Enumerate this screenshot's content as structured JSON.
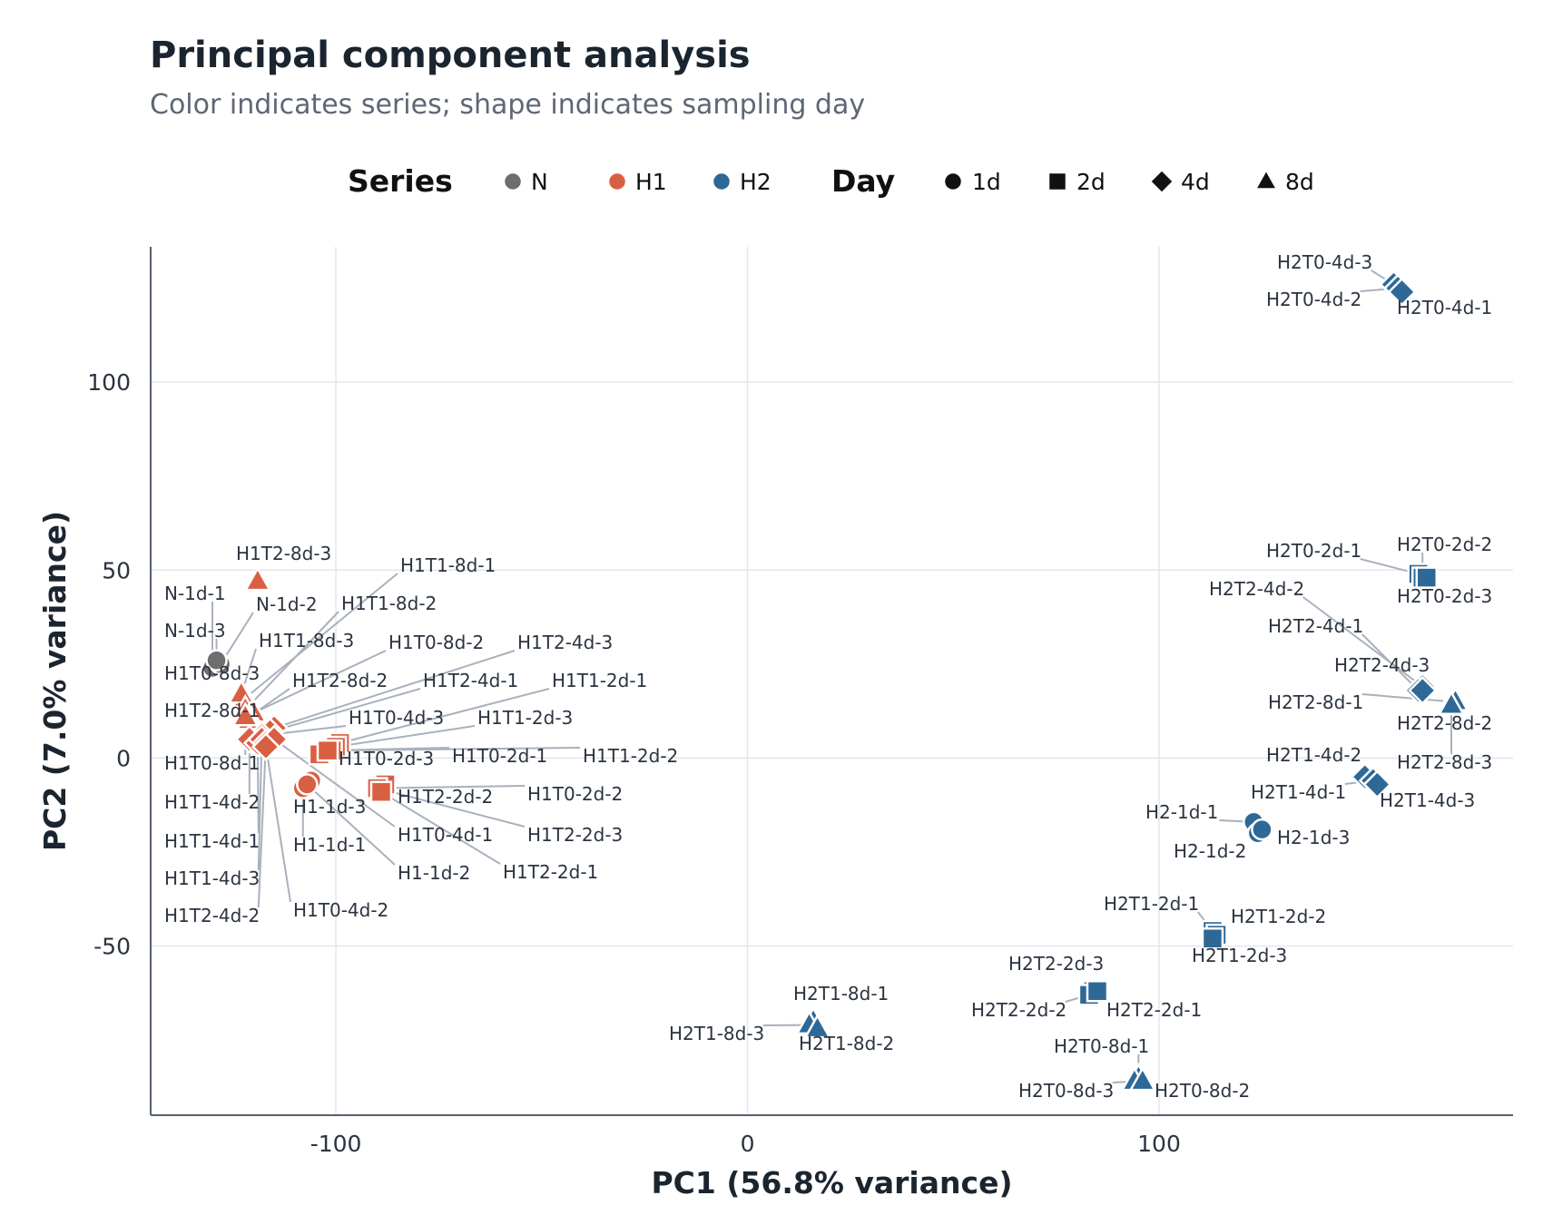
{
  "chart_data": {
    "type": "scatter",
    "title": "Principal component analysis",
    "subtitle": "Color indicates series; shape indicates sampling day",
    "xlabel": "PC1 (56.8% variance)",
    "ylabel": "PC2 (7.0% variance)",
    "xlim": [
      -145,
      186
    ],
    "ylim": [
      -95,
      136
    ],
    "xticks": [
      -100,
      0,
      100
    ],
    "yticks": [
      -50,
      0,
      50,
      100
    ],
    "grid": true,
    "legend": {
      "position": "top",
      "series_title": "Series",
      "series": [
        {
          "name": "N",
          "color": "#6e6e6e"
        },
        {
          "name": "H1",
          "color": "#d95f43"
        },
        {
          "name": "H2",
          "color": "#2e6896"
        }
      ],
      "day_title": "Day",
      "days": [
        {
          "name": "1d",
          "shape": "circle"
        },
        {
          "name": "2d",
          "shape": "square"
        },
        {
          "name": "4d",
          "shape": "diamond"
        },
        {
          "name": "8d",
          "shape": "triangle"
        }
      ]
    },
    "points": [
      {
        "label": "N-1d-1",
        "series": "N",
        "day": "1d",
        "x": -130,
        "y": 24
      },
      {
        "label": "N-1d-2",
        "series": "N",
        "day": "1d",
        "x": -128,
        "y": 25
      },
      {
        "label": "N-1d-3",
        "series": "N",
        "day": "1d",
        "x": -129,
        "y": 26
      },
      {
        "label": "H1T2-8d-3",
        "series": "H1",
        "day": "8d",
        "x": -119,
        "y": 47
      },
      {
        "label": "H1T1-8d-1",
        "series": "H1",
        "day": "8d",
        "x": -122,
        "y": 16
      },
      {
        "label": "H1T1-8d-2",
        "series": "H1",
        "day": "8d",
        "x": -121,
        "y": 14
      },
      {
        "label": "H1T1-8d-3",
        "series": "H1",
        "day": "8d",
        "x": -123,
        "y": 17
      },
      {
        "label": "H1T0-8d-3",
        "series": "H1",
        "day": "8d",
        "x": -122,
        "y": 13
      },
      {
        "label": "H1T0-8d-2",
        "series": "H1",
        "day": "8d",
        "x": -120,
        "y": 12
      },
      {
        "label": "H1T2-8d-2",
        "series": "H1",
        "day": "8d",
        "x": -121,
        "y": 11
      },
      {
        "label": "H1T2-8d-1",
        "series": "H1",
        "day": "8d",
        "x": -121,
        "y": 10
      },
      {
        "label": "H1T0-8d-1",
        "series": "H1",
        "day": "8d",
        "x": -122,
        "y": 11
      },
      {
        "label": "H1T2-4d-3",
        "series": "H1",
        "day": "4d",
        "x": -115,
        "y": 8
      },
      {
        "label": "H1T2-4d-1",
        "series": "H1",
        "day": "4d",
        "x": -116,
        "y": 7
      },
      {
        "label": "H1T0-4d-3",
        "series": "H1",
        "day": "4d",
        "x": -118,
        "y": 6
      },
      {
        "label": "H1T1-4d-2",
        "series": "H1",
        "day": "4d",
        "x": -121,
        "y": 5
      },
      {
        "label": "H1T1-4d-1",
        "series": "H1",
        "day": "4d",
        "x": -119,
        "y": 4
      },
      {
        "label": "H1T1-4d-3",
        "series": "H1",
        "day": "4d",
        "x": -118,
        "y": 5
      },
      {
        "label": "H1T2-4d-2",
        "series": "H1",
        "day": "4d",
        "x": -117,
        "y": 4
      },
      {
        "label": "H1T0-4d-1",
        "series": "H1",
        "day": "4d",
        "x": -115,
        "y": 5
      },
      {
        "label": "H1T0-4d-2",
        "series": "H1",
        "day": "4d",
        "x": -117,
        "y": 3
      },
      {
        "label": "H1T1-2d-1",
        "series": "H1",
        "day": "2d",
        "x": -99,
        "y": 4
      },
      {
        "label": "H1T1-2d-3",
        "series": "H1",
        "day": "2d",
        "x": -100,
        "y": 3
      },
      {
        "label": "H1T1-2d-2",
        "series": "H1",
        "day": "2d",
        "x": -101,
        "y": 2
      },
      {
        "label": "H1T0-2d-3",
        "series": "H1",
        "day": "2d",
        "x": -104,
        "y": 1
      },
      {
        "label": "H1T0-2d-1",
        "series": "H1",
        "day": "2d",
        "x": -102,
        "y": 2
      },
      {
        "label": "H1T0-2d-2",
        "series": "H1",
        "day": "2d",
        "x": -89,
        "y": -8
      },
      {
        "label": "H1T2-2d-2",
        "series": "H1",
        "day": "2d",
        "x": -88,
        "y": -7
      },
      {
        "label": "H1T2-2d-3",
        "series": "H1",
        "day": "2d",
        "x": -90,
        "y": -8
      },
      {
        "label": "H1T2-2d-1",
        "series": "H1",
        "day": "2d",
        "x": -89,
        "y": -9
      },
      {
        "label": "H1-1d-3",
        "series": "H1",
        "day": "1d",
        "x": -106,
        "y": -6
      },
      {
        "label": "H1-1d-1",
        "series": "H1",
        "day": "1d",
        "x": -108,
        "y": -8
      },
      {
        "label": "H1-1d-2",
        "series": "H1",
        "day": "1d",
        "x": -107,
        "y": -7
      },
      {
        "label": "H2T0-4d-3",
        "series": "H2",
        "day": "4d",
        "x": 157,
        "y": 126
      },
      {
        "label": "H2T0-4d-2",
        "series": "H2",
        "day": "4d",
        "x": 158,
        "y": 125
      },
      {
        "label": "H2T0-4d-1",
        "series": "H2",
        "day": "4d",
        "x": 159,
        "y": 124
      },
      {
        "label": "H2T0-2d-1",
        "series": "H2",
        "day": "2d",
        "x": 163,
        "y": 49
      },
      {
        "label": "H2T0-2d-2",
        "series": "H2",
        "day": "2d",
        "x": 164,
        "y": 48
      },
      {
        "label": "H2T0-2d-3",
        "series": "H2",
        "day": "2d",
        "x": 165,
        "y": 48
      },
      {
        "label": "H2T2-4d-2",
        "series": "H2",
        "day": "4d",
        "x": 164,
        "y": 19
      },
      {
        "label": "H2T2-4d-1",
        "series": "H2",
        "day": "4d",
        "x": 163,
        "y": 18
      },
      {
        "label": "H2T2-4d-3",
        "series": "H2",
        "day": "4d",
        "x": 164,
        "y": 18
      },
      {
        "label": "H2T2-8d-1",
        "series": "H2",
        "day": "8d",
        "x": 171,
        "y": 15
      },
      {
        "label": "H2T2-8d-2",
        "series": "H2",
        "day": "8d",
        "x": 172,
        "y": 15
      },
      {
        "label": "H2T2-8d-3",
        "series": "H2",
        "day": "8d",
        "x": 171,
        "y": 14
      },
      {
        "label": "H2T1-4d-2",
        "series": "H2",
        "day": "4d",
        "x": 150,
        "y": -5
      },
      {
        "label": "H2T1-4d-1",
        "series": "H2",
        "day": "4d",
        "x": 152,
        "y": -6
      },
      {
        "label": "H2T1-4d-3",
        "series": "H2",
        "day": "4d",
        "x": 153,
        "y": -7
      },
      {
        "label": "H2-1d-1",
        "series": "H2",
        "day": "1d",
        "x": 123,
        "y": -17
      },
      {
        "label": "H2-1d-2",
        "series": "H2",
        "day": "1d",
        "x": 124,
        "y": -20
      },
      {
        "label": "H2-1d-3",
        "series": "H2",
        "day": "1d",
        "x": 125,
        "y": -19
      },
      {
        "label": "H2T1-2d-1",
        "series": "H2",
        "day": "2d",
        "x": 113,
        "y": -46
      },
      {
        "label": "H2T1-2d-2",
        "series": "H2",
        "day": "2d",
        "x": 114,
        "y": -47
      },
      {
        "label": "H2T1-2d-3",
        "series": "H2",
        "day": "2d",
        "x": 113,
        "y": -48
      },
      {
        "label": "H2T2-2d-3",
        "series": "H2",
        "day": "2d",
        "x": 84,
        "y": -62
      },
      {
        "label": "H2T2-2d-2",
        "series": "H2",
        "day": "2d",
        "x": 83,
        "y": -63
      },
      {
        "label": "H2T2-2d-1",
        "series": "H2",
        "day": "2d",
        "x": 85,
        "y": -62
      },
      {
        "label": "H2T1-8d-1",
        "series": "H2",
        "day": "8d",
        "x": 16,
        "y": -70
      },
      {
        "label": "H2T1-8d-3",
        "series": "H2",
        "day": "8d",
        "x": 15,
        "y": -71
      },
      {
        "label": "H2T1-8d-2",
        "series": "H2",
        "day": "8d",
        "x": 17,
        "y": -72
      },
      {
        "label": "H2T0-8d-1",
        "series": "H2",
        "day": "8d",
        "x": 95,
        "y": -85
      },
      {
        "label": "H2T0-8d-3",
        "series": "H2",
        "day": "8d",
        "x": 94,
        "y": -86
      },
      {
        "label": "H2T0-8d-2",
        "series": "H2",
        "day": "8d",
        "x": 96,
        "y": -86
      }
    ]
  }
}
